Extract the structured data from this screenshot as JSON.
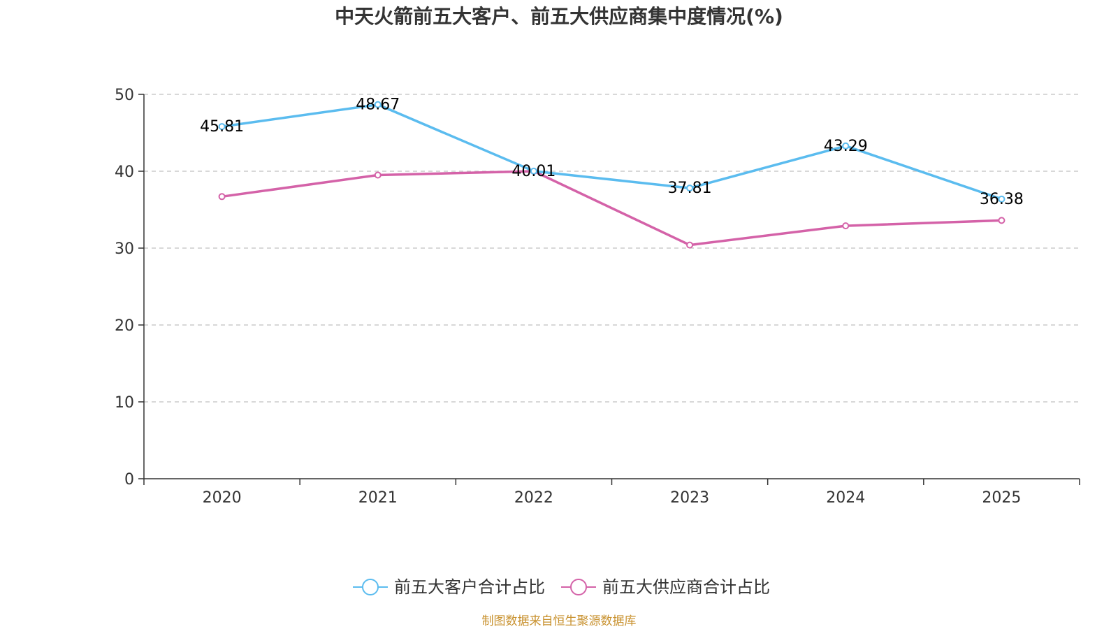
{
  "chart_data": {
    "type": "line",
    "title": "中天火箭前五大客户、前五大供应商集中度情况(%)",
    "categories": [
      "2020",
      "2021",
      "2022",
      "2023",
      "2024",
      "2025"
    ],
    "series": [
      {
        "name": "前五大客户合计占比",
        "color": "#5bbcef",
        "values": [
          45.81,
          48.67,
          40.01,
          37.81,
          43.29,
          36.38
        ],
        "show_labels": true,
        "labels": [
          "45.81",
          "48.67",
          "40.01",
          "37.81",
          "43.29",
          "36.38"
        ]
      },
      {
        "name": "前五大供应商合计占比",
        "color": "#d462a8",
        "values": [
          36.7,
          39.5,
          40.0,
          30.4,
          32.9,
          33.6
        ],
        "show_labels": false
      }
    ],
    "ylim": [
      0,
      50
    ],
    "yticks": [
      "0",
      "10",
      "20",
      "30",
      "40",
      "50"
    ],
    "xlabel": "",
    "ylabel": "",
    "grid": true,
    "legend": "bottom"
  },
  "source": "制图数据来自恒生聚源数据库"
}
